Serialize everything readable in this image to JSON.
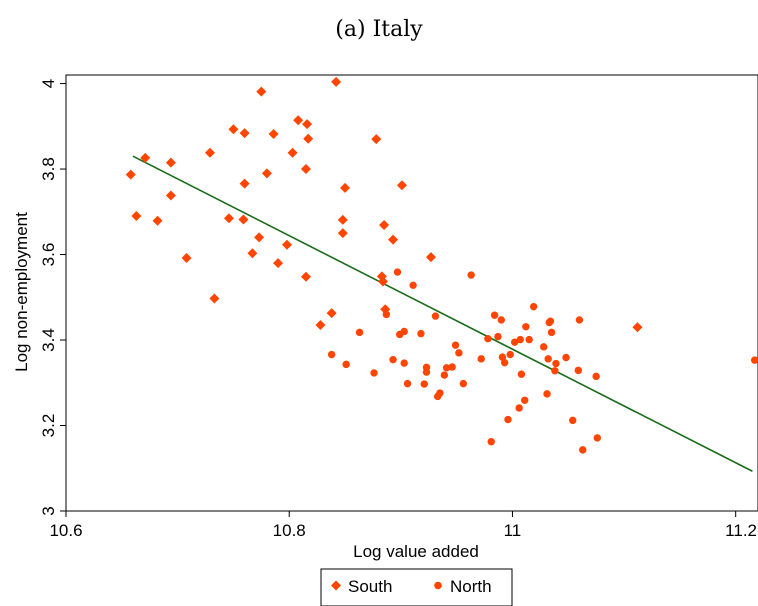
{
  "chart_data": {
    "type": "scatter",
    "title": "(a) Italy",
    "xlabel": "Log value added",
    "ylabel": "Log non-employment",
    "xlim": [
      10.6,
      11.22
    ],
    "ylim": [
      3.0,
      4.02
    ],
    "xticks": [
      10.6,
      10.8,
      11,
      11.2
    ],
    "xtick_labels": [
      "10.6",
      "10.8",
      "11",
      "11.2"
    ],
    "yticks": [
      3.0,
      3.2,
      3.4,
      3.6,
      3.8,
      4.0
    ],
    "ytick_labels": [
      "3",
      "3.2",
      "3.4",
      "3.6",
      "3.8",
      "4"
    ],
    "grid": false,
    "legend_position": "bottom-center",
    "colors": {
      "points": "#ff4500",
      "fit": "#1a6b1a"
    },
    "series": [
      {
        "name": "South",
        "marker": "diamond",
        "x": [
          10.658,
          10.663,
          10.671,
          10.682,
          10.694,
          10.694,
          10.708,
          10.729,
          10.733,
          10.746,
          10.75,
          10.759,
          10.76,
          10.76,
          10.767,
          10.773,
          10.775,
          10.78,
          10.786,
          10.79,
          10.798,
          10.803,
          10.808,
          10.815,
          10.815,
          10.816,
          10.817,
          10.828,
          10.838,
          10.842,
          10.848,
          10.848,
          10.85,
          10.878,
          10.883,
          10.884,
          10.885,
          10.886,
          10.893,
          10.901,
          10.927,
          11.112
        ],
        "y": [
          3.787,
          3.69,
          3.826,
          3.679,
          3.815,
          3.738,
          3.592,
          3.838,
          3.497,
          3.685,
          3.893,
          3.682,
          3.766,
          3.884,
          3.603,
          3.64,
          3.981,
          3.79,
          3.882,
          3.58,
          3.623,
          3.838,
          3.914,
          3.548,
          3.8,
          3.905,
          3.871,
          3.435,
          3.463,
          4.004,
          3.681,
          3.65,
          3.756,
          3.87,
          3.549,
          3.537,
          3.669,
          3.472,
          3.635,
          3.762,
          3.594,
          3.43
        ]
      },
      {
        "name": "North",
        "marker": "circle",
        "x": [
          10.838,
          10.851,
          10.863,
          10.876,
          10.887,
          10.893,
          10.897,
          10.899,
          10.903,
          10.903,
          10.906,
          10.911,
          10.918,
          10.921,
          10.923,
          10.923,
          10.931,
          10.933,
          10.935,
          10.939,
          10.941,
          10.946,
          10.949,
          10.952,
          10.956,
          10.963,
          10.972,
          10.978,
          10.981,
          10.984,
          10.987,
          10.99,
          10.991,
          10.993,
          10.996,
          10.998,
          11.002,
          11.006,
          11.007,
          11.008,
          11.011,
          11.012,
          11.015,
          11.019,
          11.028,
          11.031,
          11.032,
          11.033,
          11.034,
          11.035,
          11.038,
          11.039,
          11.048,
          11.054,
          11.059,
          11.06,
          11.063,
          11.075,
          11.076,
          11.217
        ],
        "y": [
          3.366,
          3.343,
          3.418,
          3.323,
          3.46,
          3.354,
          3.559,
          3.413,
          3.346,
          3.42,
          3.298,
          3.528,
          3.415,
          3.297,
          3.336,
          3.325,
          3.456,
          3.268,
          3.276,
          3.318,
          3.335,
          3.337,
          3.388,
          3.37,
          3.298,
          3.552,
          3.356,
          3.403,
          3.162,
          3.458,
          3.408,
          3.447,
          3.36,
          3.347,
          3.214,
          3.366,
          3.395,
          3.241,
          3.401,
          3.32,
          3.259,
          3.431,
          3.401,
          3.478,
          3.384,
          3.274,
          3.356,
          3.441,
          3.444,
          3.418,
          3.328,
          3.345,
          3.359,
          3.212,
          3.329,
          3.447,
          3.143,
          3.315,
          3.171,
          3.353
        ]
      }
    ],
    "fit_line": {
      "x": [
        10.66,
        11.215
      ],
      "y": [
        3.83,
        3.093
      ]
    }
  },
  "legend": {
    "south_label": "South",
    "north_label": "North"
  }
}
